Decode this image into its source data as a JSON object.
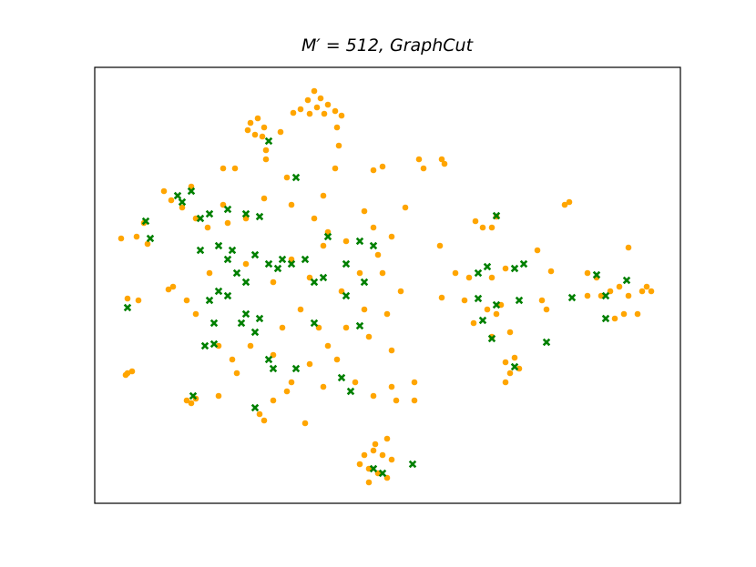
{
  "chart_data": {
    "type": "scatter",
    "title": "M′ = 512, GraphCut",
    "xlim": [
      0,
      643
    ],
    "ylim": [
      0,
      479
    ],
    "series": [
      {
        "color": "#ffa500",
        "marker": "circle",
        "x": [
          226,
          234,
          241,
          248,
          256,
          264,
          271,
          236,
          218,
          252,
          244,
          266,
          268,
          264,
          171,
          179,
          186,
          176,
          168,
          184,
          188,
          204,
          76,
          84,
          96,
          106,
          111,
          54,
          46,
          29,
          58,
          36,
          48,
          36,
          41,
          34,
          106,
          101,
          111,
          86,
          81,
          101,
          146,
          166,
          186,
          216,
          241,
          256,
          276,
          296,
          306,
          326,
          341,
          316,
          336,
          296,
          276,
          256,
          236,
          216,
          196,
          181,
          156,
          136,
          151,
          171,
          206,
          226,
          246,
          266,
          286,
          306,
          326,
          331,
          351,
          351,
          326,
          301,
          231,
          211,
          251,
          126,
          111,
          136,
          166,
          196,
          216,
          236,
          251,
          271,
          291,
          311,
          321,
          196,
          141,
          124,
          211,
          251,
          141,
          154,
          306,
          316,
          356,
          361,
          381,
          384,
          188,
          296,
          306,
          316,
          326,
          301,
          311,
          321,
          301,
          291,
          321,
          308,
          186,
          418,
          441,
          436,
          426,
          379,
          396,
          411,
          436,
          451,
          486,
          501,
          381,
          406,
          431,
          446,
          441,
          416,
          436,
          456,
          496,
          491,
          516,
          521,
          586,
          541,
          551,
          556,
          566,
          576,
          586,
          596,
          581,
          571,
          606,
          611,
          601,
          451,
          461,
          466,
          456,
          451,
          541
        ],
        "values": [
          433,
          443,
          453,
          445,
          438,
          431,
          426,
          428,
          429,
          428,
          435,
          413,
          393,
          368,
          418,
          423,
          413,
          405,
          410,
          403,
          378,
          408,
          343,
          333,
          325,
          348,
          313,
          308,
          293,
          291,
          285,
          225,
          223,
          143,
          145,
          141,
          110,
          113,
          115,
          238,
          235,
          223,
          308,
          313,
          335,
          328,
          313,
          298,
          288,
          321,
          303,
          293,
          325,
          253,
          233,
          213,
          193,
          173,
          153,
          133,
          113,
          98,
          143,
          118,
          158,
          173,
          193,
          213,
          193,
          158,
          133,
          118,
          128,
          113,
          133,
          113,
          168,
          183,
          88,
          123,
          128,
          253,
          208,
          173,
          263,
          243,
          268,
          248,
          283,
          233,
          253,
          273,
          208,
          163,
          328,
          303,
          358,
          338,
          368,
          368,
          366,
          370,
          378,
          368,
          378,
          373,
          388,
          53,
          58,
          53,
          48,
          38,
          33,
          28,
          23,
          43,
          71,
          65,
          91,
          310,
          315,
          303,
          303,
          283,
          253,
          248,
          248,
          258,
          278,
          255,
          226,
          223,
          213,
          218,
          208,
          198,
          183,
          188,
          213,
          223,
          328,
          331,
          281,
          253,
          248,
          228,
          233,
          238,
          228,
          208,
          208,
          203,
          238,
          233,
          233,
          155,
          160,
          148,
          143,
          133,
          228
        ]
      },
      {
        "color": "#008000",
        "marker": "x",
        "x": [
          91,
          96,
          106,
          116,
          126,
          146,
          166,
          181,
          191,
          221,
          56,
          61,
          36,
          136,
          146,
          156,
          176,
          191,
          201,
          136,
          126,
          146,
          166,
          161,
          181,
          176,
          131,
          121,
          131,
          166,
          216,
          231,
          241,
          251,
          256,
          276,
          291,
          306,
          296,
          276,
          241,
          191,
          196,
          221,
          271,
          281,
          291,
          176,
          108,
          306,
          316,
          349,
          421,
          431,
          461,
          471,
          421,
          426,
          441,
          466,
          436,
          496,
          461,
          524,
          551,
          561,
          584,
          561,
          441,
          151,
          206,
          116
        ],
        "values": [
          338,
          331,
          343,
          313,
          318,
          323,
          318,
          315,
          398,
          358,
          310,
          291,
          215,
          283,
          268,
          253,
          273,
          263,
          258,
          233,
          223,
          228,
          208,
          198,
          203,
          188,
          198,
          173,
          175,
          243,
          263,
          268,
          243,
          248,
          293,
          263,
          288,
          283,
          243,
          228,
          198,
          158,
          148,
          148,
          138,
          123,
          195,
          105,
          118,
          38,
          33,
          43,
          253,
          260,
          258,
          263,
          225,
          201,
          218,
          223,
          181,
          177,
          150,
          226,
          251,
          228,
          245,
          203,
          316,
          278,
          268,
          278
        ]
      }
    ]
  }
}
